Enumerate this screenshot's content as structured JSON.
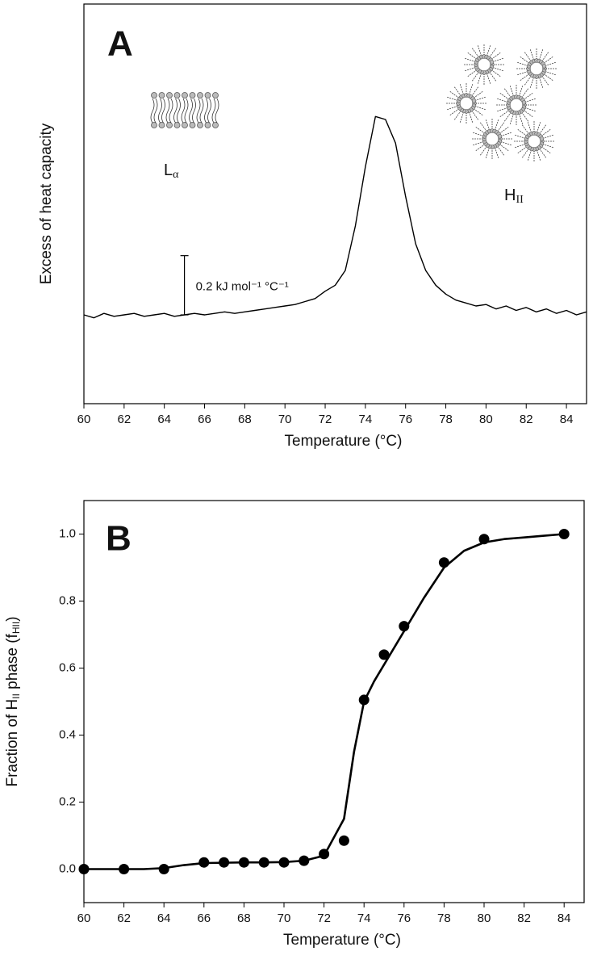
{
  "chart_data": [
    {
      "type": "line",
      "panel_label": "A",
      "y_label": "Excess of heat capacity",
      "x_label": "Temperature (°C)",
      "xlim": [
        60,
        85
      ],
      "xticks": [
        60,
        62,
        64,
        66,
        68,
        70,
        72,
        74,
        76,
        78,
        80,
        82,
        84
      ],
      "ylim": [
        -0.3,
        1.05
      ],
      "x": [
        60,
        60.5,
        61,
        61.5,
        62,
        62.5,
        63,
        63.5,
        64,
        64.5,
        65,
        65.5,
        66,
        66.5,
        67,
        67.5,
        68,
        68.5,
        69,
        69.5,
        70,
        70.5,
        71,
        71.5,
        72,
        72.5,
        73,
        73.5,
        74,
        74.5,
        75,
        75.5,
        76,
        76.5,
        77,
        77.5,
        78,
        78.5,
        79,
        79.5,
        80,
        80.5,
        81,
        81.5,
        82,
        82.5,
        83,
        83.5,
        84,
        84.5,
        85
      ],
      "series": [
        {
          "color": "#000000",
          "values": [
            0.0,
            -0.01,
            0.005,
            -0.005,
            0.0,
            0.005,
            -0.005,
            0.0,
            0.005,
            -0.005,
            0.0,
            0.005,
            0.0,
            0.005,
            0.01,
            0.005,
            0.01,
            0.015,
            0.02,
            0.025,
            0.03,
            0.035,
            0.045,
            0.055,
            0.08,
            0.1,
            0.15,
            0.3,
            0.5,
            0.67,
            0.66,
            0.58,
            0.4,
            0.24,
            0.15,
            0.1,
            0.07,
            0.05,
            0.04,
            0.03,
            0.035,
            0.02,
            0.03,
            0.015,
            0.025,
            0.01,
            0.02,
            0.005,
            0.015,
            0.0,
            0.01
          ]
        }
      ],
      "scale_bar": {
        "x": 65,
        "value": 0.2,
        "label": "0.2 kJ mol⁻¹ °C⁻¹"
      },
      "phase_labels": [
        {
          "main": "L",
          "sub": "α"
        },
        {
          "main": "H",
          "sub": "II"
        }
      ]
    },
    {
      "type": "scatter",
      "panel_label": "B",
      "y_label": [
        "Fraction of H",
        "II",
        " phase (f",
        "HII",
        ")"
      ],
      "x_label": "Temperature (°C)",
      "xlim": [
        60,
        85
      ],
      "xticks": [
        60,
        62,
        64,
        66,
        68,
        70,
        72,
        74,
        76,
        78,
        80,
        82,
        84
      ],
      "ylim": [
        -0.1,
        1.1
      ],
      "yticks": [
        {
          "value": 0,
          "label": "0.0"
        },
        {
          "value": 0.2,
          "label": "0.2"
        },
        {
          "value": 0.4,
          "label": "0.4"
        },
        {
          "value": 0.6,
          "label": "0.6"
        },
        {
          "value": 0.8,
          "label": "0.8"
        },
        {
          "value": 1,
          "label": "1.0"
        }
      ],
      "x": [
        60,
        62,
        64,
        66,
        67,
        68,
        69,
        70,
        71,
        72,
        73,
        74,
        75,
        76,
        78,
        80,
        84
      ],
      "series": [
        {
          "color": "#000000",
          "values": [
            0,
            0,
            0,
            0.02,
            0.02,
            0.02,
            0.02,
            0.02,
            0.025,
            0.045,
            0.085,
            0.505,
            0.64,
            0.725,
            0.915,
            0.985,
            1.0
          ]
        }
      ],
      "fit": {
        "color": "#000000",
        "x": [
          60,
          61,
          62,
          63,
          64,
          65,
          66,
          67,
          68,
          69,
          70,
          71,
          72,
          73,
          73.5,
          74,
          74.5,
          75,
          76,
          77,
          78,
          79,
          80,
          81,
          82,
          83,
          84
        ],
        "values": [
          0,
          0,
          0,
          0,
          0.003,
          0.012,
          0.018,
          0.019,
          0.02,
          0.02,
          0.021,
          0.025,
          0.04,
          0.15,
          0.35,
          0.5,
          0.56,
          0.61,
          0.71,
          0.81,
          0.9,
          0.95,
          0.975,
          0.985,
          0.99,
          0.995,
          1.0
        ]
      }
    }
  ]
}
